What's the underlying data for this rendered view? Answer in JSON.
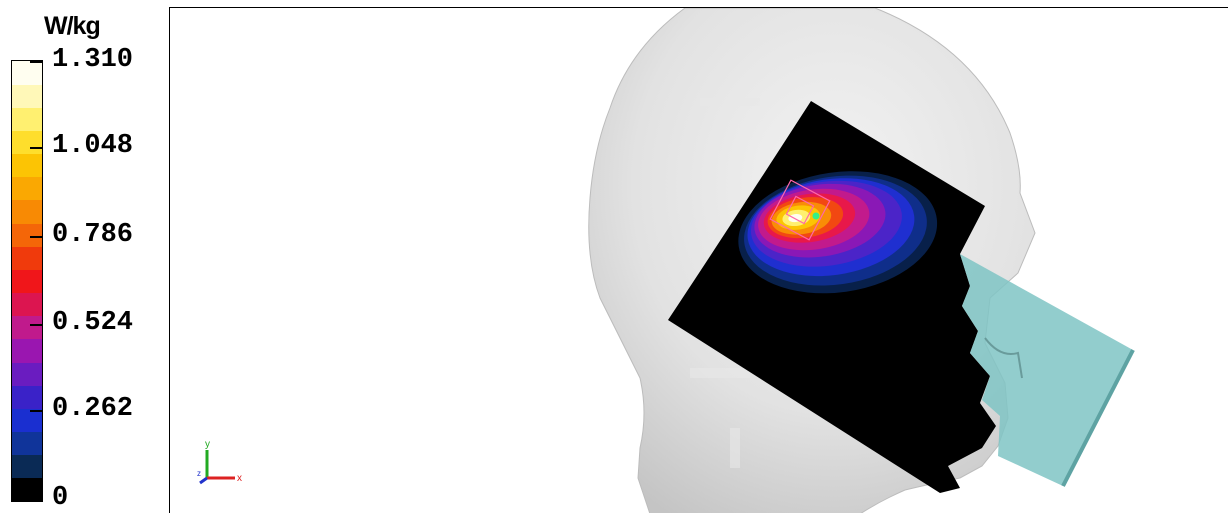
{
  "legend": {
    "unit": "W/kg",
    "ticks": [
      "1.310",
      "1.048",
      "0.786",
      "0.524",
      "0.262",
      "0"
    ],
    "colors": [
      "#000000",
      "#0a2a55",
      "#10349a",
      "#1a2fd0",
      "#3a22c8",
      "#6a1cc0",
      "#9a16b0",
      "#c01a8c",
      "#dc1550",
      "#f0161a",
      "#f03a0c",
      "#f46608",
      "#f88a04",
      "#faa802",
      "#fcc404",
      "#fede2c",
      "#fff070",
      "#fff8b8",
      "#fffef0"
    ]
  },
  "axes": {
    "x": "x",
    "y": "y",
    "z": "z"
  },
  "colors": {
    "head": "#dcdcdc",
    "phone": "#7fc4c4",
    "sar_background": "#000000"
  }
}
